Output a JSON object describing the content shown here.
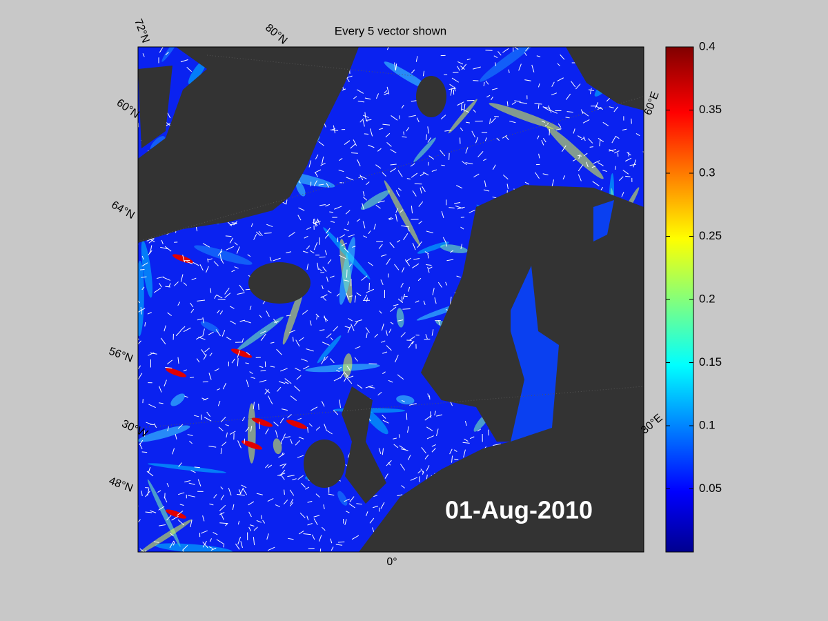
{
  "title": "Every 5 vector shown",
  "date_label": "01-Aug-2010",
  "graticule_labels": [
    "72°N",
    "80°N",
    "60°E",
    "60°N",
    "64°N",
    "56°N",
    "30°W",
    "48°N",
    "0°",
    "30°E"
  ],
  "colorbar": {
    "lim": [
      0,
      0.4
    ],
    "ticks": [
      0.05,
      0.1,
      0.15,
      0.2,
      0.25,
      0.3,
      0.35,
      0.4
    ]
  }
}
